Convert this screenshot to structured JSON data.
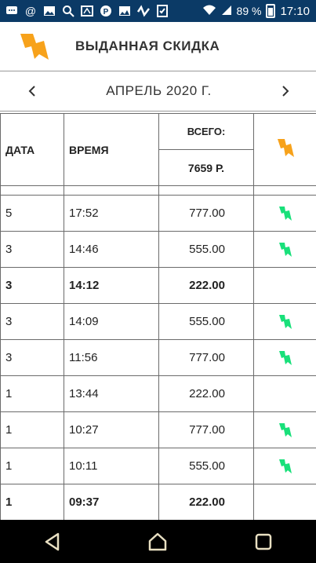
{
  "status_bar": {
    "battery": "89 %",
    "time": "17:10",
    "icons": [
      "chat-icon",
      "at-icon",
      "image-icon",
      "search-icon",
      "card-icon",
      "pinterest-icon",
      "gallery-icon",
      "wave-icon",
      "check-icon",
      "wifi-icon",
      "signal-icon",
      "battery-icon"
    ]
  },
  "header": {
    "title": "ВЫДАННАЯ СКИДКА"
  },
  "month_nav": {
    "label": "АПРЕЛЬ 2020 Г.",
    "prev": "‹",
    "next": "›"
  },
  "table": {
    "columns": {
      "date": "ДАТА",
      "time": "ВРЕМЯ",
      "total_label": "ВСЕГО:",
      "total_value": "7659 Р."
    },
    "rows": [
      {
        "date": "5",
        "time": "17:52",
        "amount": "777.00",
        "mark": true,
        "bold": false
      },
      {
        "date": "3",
        "time": "14:46",
        "amount": "555.00",
        "mark": true,
        "bold": false
      },
      {
        "date": "3",
        "time": "14:12",
        "amount": "222.00",
        "mark": false,
        "bold": true
      },
      {
        "date": "3",
        "time": "14:09",
        "amount": "555.00",
        "mark": true,
        "bold": false
      },
      {
        "date": "3",
        "time": "11:56",
        "amount": "777.00",
        "mark": true,
        "bold": false
      },
      {
        "date": "1",
        "time": "13:44",
        "amount": "222.00",
        "mark": false,
        "bold": false
      },
      {
        "date": "1",
        "time": "10:27",
        "amount": "777.00",
        "mark": true,
        "bold": false
      },
      {
        "date": "1",
        "time": "10:11",
        "amount": "555.00",
        "mark": true,
        "bold": false
      },
      {
        "date": "1",
        "time": "09:37",
        "amount": "222.00",
        "mark": false,
        "bold": true
      }
    ]
  },
  "colors": {
    "brand_orange": "#f7a21b",
    "mark_green": "#19e07a",
    "status_bar": "#0b3a66"
  },
  "nav_bar": {
    "icons": [
      "back-icon",
      "home-icon",
      "recents-icon"
    ]
  }
}
